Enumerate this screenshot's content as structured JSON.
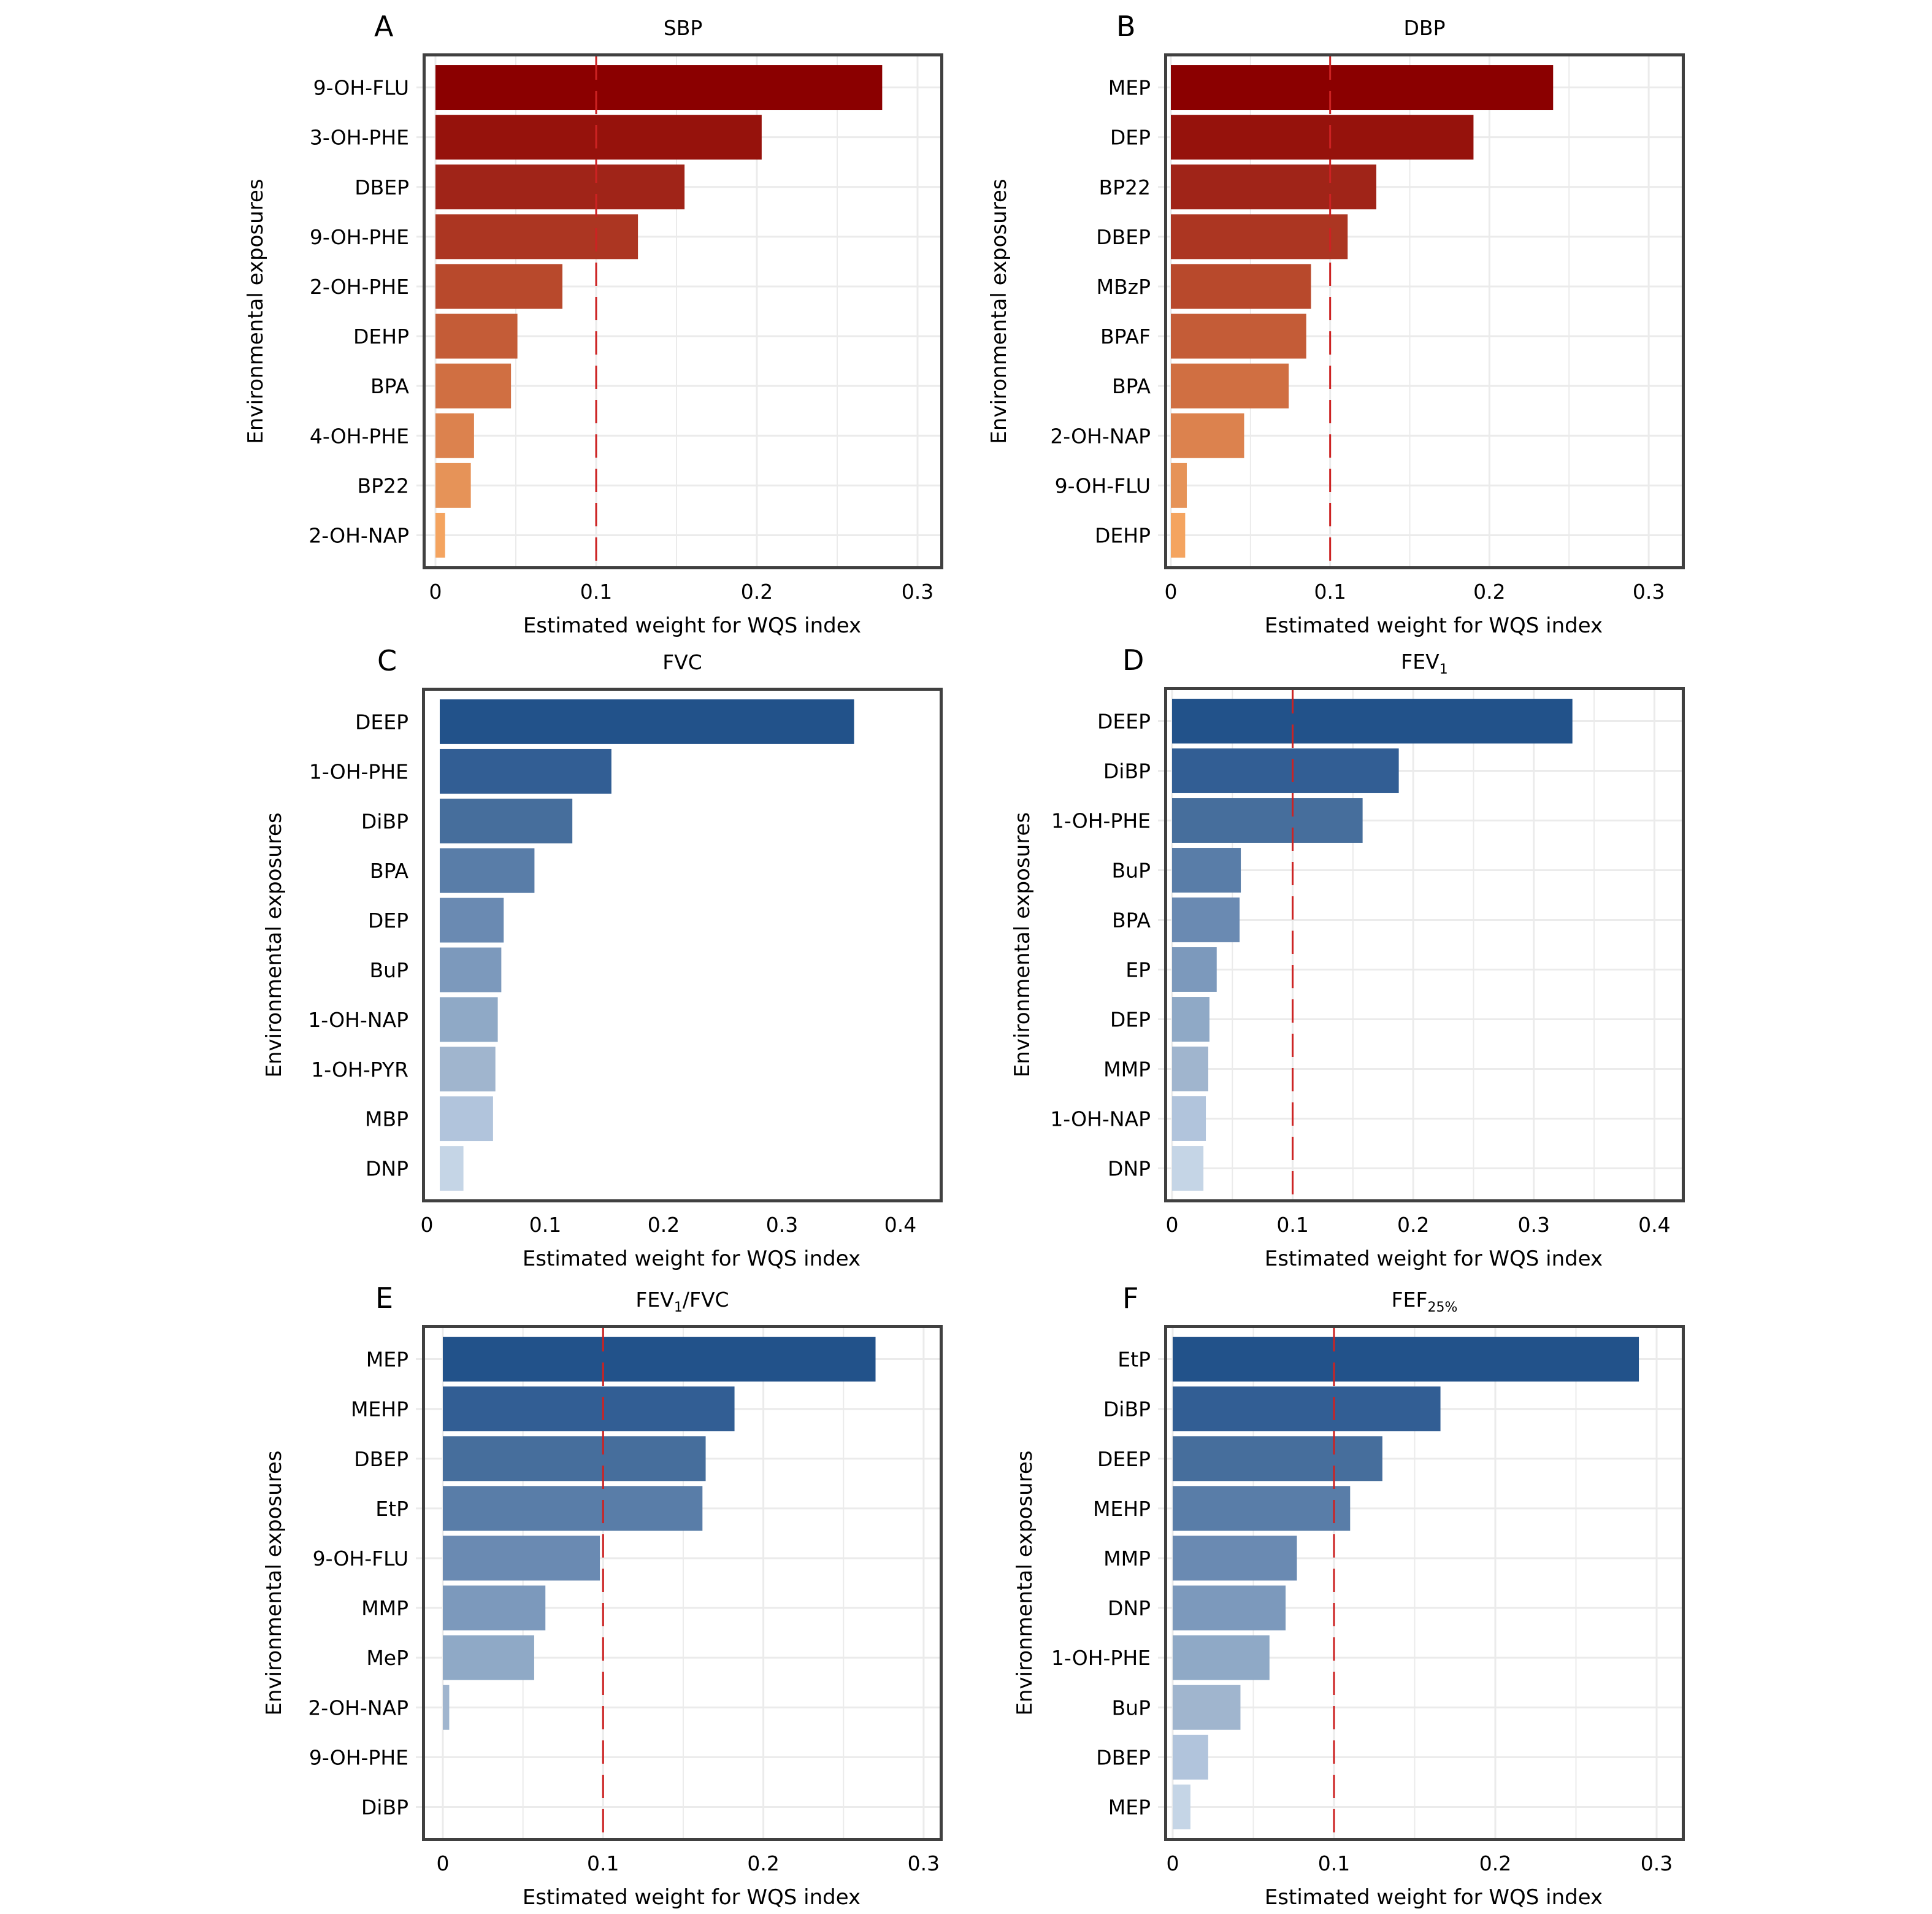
{
  "chart_data": [
    {
      "panel": "A",
      "type": "bar",
      "orientation": "horizontal",
      "title": "SBP",
      "title_subscript": "",
      "xlabel": "Estimated weight for WQS index",
      "ylabel": "Environmental exposures",
      "xlim": [
        0,
        0.3
      ],
      "xticks": [
        "0",
        "0.1",
        "0.2",
        "0.3"
      ],
      "xtick_values": [
        0,
        0.1,
        0.2,
        0.3
      ],
      "grid": true,
      "reference_line": 0.1,
      "palette": "red",
      "categories": [
        "9-OH-FLU",
        "3-OH-PHE",
        "DBEP",
        "9-OH-PHE",
        "2-OH-PHE",
        "DEHP",
        "BPA",
        "4-OH-PHE",
        "BP22",
        "2-OH-NAP"
      ],
      "values": [
        0.278,
        0.203,
        0.155,
        0.126,
        0.079,
        0.051,
        0.047,
        0.024,
        0.022,
        0.006
      ]
    },
    {
      "panel": "B",
      "type": "bar",
      "orientation": "horizontal",
      "title": "DBP",
      "title_subscript": "",
      "xlabel": "Estimated weight for WQS index",
      "ylabel": "Environmental exposures",
      "xlim": [
        0,
        0.3
      ],
      "xticks": [
        "0",
        "0.1",
        "0.2",
        "0.3"
      ],
      "xtick_values": [
        0,
        0.1,
        0.2,
        0.3
      ],
      "grid": true,
      "reference_line": 0.1,
      "palette": "red",
      "categories": [
        "MEP",
        "DEP",
        "BP22",
        "DBEP",
        "MBzP",
        "BPAF",
        "BPA",
        "2-OH-NAP",
        "9-OH-FLU",
        "DEHP"
      ],
      "values": [
        0.24,
        0.19,
        0.129,
        0.111,
        0.088,
        0.085,
        0.074,
        0.046,
        0.01,
        0.009
      ]
    },
    {
      "panel": "C",
      "type": "bar",
      "orientation": "horizontal",
      "title": "FVC",
      "title_subscript": "",
      "xlabel": "Estimated weight for WQS index",
      "ylabel": "Environmental exposures",
      "xlim": [
        0,
        0.4
      ],
      "xticks": [
        "0",
        "0.1",
        "0.2",
        "0.3",
        "0.4"
      ],
      "xtick_values": [
        0,
        0.1,
        0.2,
        0.3,
        0.4
      ],
      "grid": false,
      "reference_line": null,
      "palette": "blue",
      "categories": [
        "DEEP",
        "1-OH-PHE",
        "DiBP",
        "BPA",
        "DEP",
        "BuP",
        "1-OH-NAP",
        "1-OH-PYR",
        "MBP",
        "DNP"
      ],
      "values": [
        0.35,
        0.145,
        0.112,
        0.08,
        0.054,
        0.052,
        0.049,
        0.047,
        0.045,
        0.02
      ]
    },
    {
      "panel": "D",
      "type": "bar",
      "orientation": "horizontal",
      "title": "FEV",
      "title_subscript": "1",
      "xlabel": "Estimated weight for WQS index",
      "ylabel": "Environmental exposures",
      "xlim": [
        0,
        0.4
      ],
      "xticks": [
        "0",
        "0.1",
        "0.2",
        "0.3",
        "0.4"
      ],
      "xtick_values": [
        0,
        0.1,
        0.2,
        0.3,
        0.4
      ],
      "grid": true,
      "reference_line": 0.1,
      "palette": "blue",
      "categories": [
        "DEEP",
        "DiBP",
        "1-OH-PHE",
        "BuP",
        "BPA",
        "EP",
        "DEP",
        "MMP",
        "1-OH-NAP",
        "DNP"
      ],
      "values": [
        0.332,
        0.188,
        0.158,
        0.057,
        0.056,
        0.037,
        0.031,
        0.03,
        0.028,
        0.026
      ]
    },
    {
      "panel": "E",
      "type": "bar",
      "orientation": "horizontal",
      "title": "FEV",
      "title_subscript": "1",
      "title_suffix": "/FVC",
      "xlabel": "Estimated weight for WQS index",
      "ylabel": "Environmental exposures",
      "xlim": [
        0,
        0.3
      ],
      "xticks": [
        "0",
        "0.1",
        "0.2",
        "0.3"
      ],
      "xtick_values": [
        0,
        0.1,
        0.2,
        0.3
      ],
      "grid": true,
      "reference_line": 0.1,
      "palette": "blue",
      "categories": [
        "MEP",
        "MEHP",
        "DBEP",
        "EtP",
        "9-OH-FLU",
        "MMP",
        "MeP",
        "2-OH-NAP",
        "9-OH-PHE",
        "DiBP"
      ],
      "values": [
        0.27,
        0.182,
        0.164,
        0.162,
        0.098,
        0.064,
        0.057,
        0.004,
        0.0,
        0.0
      ]
    },
    {
      "panel": "F",
      "type": "bar",
      "orientation": "horizontal",
      "title": "FEF",
      "title_subscript": "25%",
      "xlabel": "Estimated weight for WQS index",
      "ylabel": "Environmental exposures",
      "xlim": [
        0,
        0.3
      ],
      "xticks": [
        "0",
        "0.1",
        "0.2",
        "0.3"
      ],
      "xtick_values": [
        0,
        0.1,
        0.2,
        0.3
      ],
      "grid": true,
      "reference_line": 0.1,
      "palette": "blue",
      "categories": [
        "EtP",
        "DiBP",
        "DEEP",
        "MEHP",
        "MMP",
        "DNP",
        "1-OH-PHE",
        "BuP",
        "DBEP",
        "MEP"
      ],
      "values": [
        0.289,
        0.166,
        0.13,
        0.11,
        0.077,
        0.07,
        0.06,
        0.042,
        0.022,
        0.011
      ]
    }
  ],
  "colors": {
    "red": [
      "#8B0000",
      "#96120C",
      "#A02418",
      "#AC3622",
      "#B8492C",
      "#C45C37",
      "#D06F42",
      "#DC824E",
      "#E69358",
      "#F4A460"
    ],
    "blue": [
      "#22528A",
      "#325E94",
      "#466E9C",
      "#597DA8",
      "#6A8AB2",
      "#7C99BC",
      "#8FA9C6",
      "#A0B5CE",
      "#B1C4DC",
      "#C5D5E6"
    ],
    "reference_line": "#CC2222",
    "frame": "#404040",
    "grid": "#EBEBEB"
  }
}
